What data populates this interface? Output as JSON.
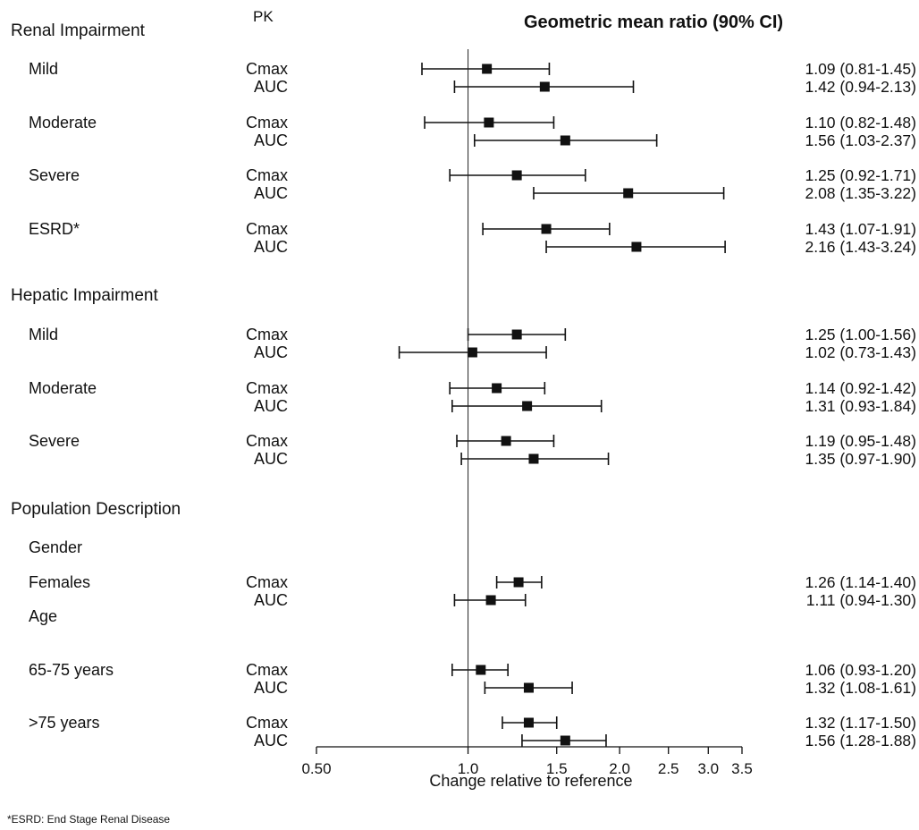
{
  "header": {
    "pk_column": "PK",
    "title": "Geometric mean ratio (90% CI)"
  },
  "axis": {
    "label": "Change relative to reference",
    "scale": "log",
    "range": [
      0.5,
      3.5
    ],
    "ticks": [
      {
        "value": 0.5,
        "label": "0.50"
      },
      {
        "value": 1.0,
        "label": "1.0"
      },
      {
        "value": 1.5,
        "label": "1.5"
      },
      {
        "value": 2.0,
        "label": "2.0"
      },
      {
        "value": 2.5,
        "label": "2.5"
      },
      {
        "value": 3.0,
        "label": "3.0"
      },
      {
        "value": 3.5,
        "label": "3.5"
      }
    ],
    "reference_line": 1.0
  },
  "footnote": "*ESRD: End Stage Renal Disease",
  "chart_data": {
    "type": "forest",
    "sections": [
      {
        "label": "Renal Impairment",
        "groups": [
          {
            "label": "Mild",
            "rows": [
              {
                "pk": "Cmax",
                "gmr": 1.09,
                "lo": 0.81,
                "hi": 1.45,
                "text": "1.09 (0.81-1.45)"
              },
              {
                "pk": "AUC",
                "gmr": 1.42,
                "lo": 0.94,
                "hi": 2.13,
                "text": "1.42 (0.94-2.13)"
              }
            ]
          },
          {
            "label": "Moderate",
            "rows": [
              {
                "pk": "Cmax",
                "gmr": 1.1,
                "lo": 0.82,
                "hi": 1.48,
                "text": "1.10 (0.82-1.48)"
              },
              {
                "pk": "AUC",
                "gmr": 1.56,
                "lo": 1.03,
                "hi": 2.37,
                "text": "1.56 (1.03-2.37)"
              }
            ]
          },
          {
            "label": "Severe",
            "rows": [
              {
                "pk": "Cmax",
                "gmr": 1.25,
                "lo": 0.92,
                "hi": 1.71,
                "text": "1.25 (0.92-1.71)"
              },
              {
                "pk": "AUC",
                "gmr": 2.08,
                "lo": 1.35,
                "hi": 3.22,
                "text": "2.08 (1.35-3.22)"
              }
            ]
          },
          {
            "label": "ESRD*",
            "rows": [
              {
                "pk": "Cmax",
                "gmr": 1.43,
                "lo": 1.07,
                "hi": 1.91,
                "text": "1.43 (1.07-1.91)"
              },
              {
                "pk": "AUC",
                "gmr": 2.16,
                "lo": 1.43,
                "hi": 3.24,
                "text": "2.16 (1.43-3.24)"
              }
            ]
          }
        ]
      },
      {
        "label": "Hepatic Impairment",
        "groups": [
          {
            "label": "Mild",
            "rows": [
              {
                "pk": "Cmax",
                "gmr": 1.25,
                "lo": 1.0,
                "hi": 1.56,
                "text": "1.25 (1.00-1.56)"
              },
              {
                "pk": "AUC",
                "gmr": 1.02,
                "lo": 0.73,
                "hi": 1.43,
                "text": "1.02 (0.73-1.43)"
              }
            ]
          },
          {
            "label": "Moderate",
            "rows": [
              {
                "pk": "Cmax",
                "gmr": 1.14,
                "lo": 0.92,
                "hi": 1.42,
                "text": "1.14 (0.92-1.42)"
              },
              {
                "pk": "AUC",
                "gmr": 1.31,
                "lo": 0.93,
                "hi": 1.84,
                "text": "1.31 (0.93-1.84)"
              }
            ]
          },
          {
            "label": "Severe",
            "rows": [
              {
                "pk": "Cmax",
                "gmr": 1.19,
                "lo": 0.95,
                "hi": 1.48,
                "text": "1.19 (0.95-1.48)"
              },
              {
                "pk": "AUC",
                "gmr": 1.35,
                "lo": 0.97,
                "hi": 1.9,
                "text": "1.35 (0.97-1.90)"
              }
            ]
          }
        ]
      },
      {
        "label": "Population Description",
        "groups": [
          {
            "label": "Gender",
            "rows": []
          },
          {
            "label": "Females",
            "rows": [
              {
                "pk": "Cmax",
                "gmr": 1.26,
                "lo": 1.14,
                "hi": 1.4,
                "text": "1.26 (1.14-1.40)"
              },
              {
                "pk": "AUC",
                "gmr": 1.11,
                "lo": 0.94,
                "hi": 1.3,
                "text": "1.11 (0.94-1.30)"
              }
            ]
          },
          {
            "label": "Age",
            "rows": []
          },
          {
            "label": "65-75 years",
            "rows": [
              {
                "pk": "Cmax",
                "gmr": 1.06,
                "lo": 0.93,
                "hi": 1.2,
                "text": "1.06 (0.93-1.20)"
              },
              {
                "pk": "AUC",
                "gmr": 1.32,
                "lo": 1.08,
                "hi": 1.61,
                "text": "1.32 (1.08-1.61)"
              }
            ]
          },
          {
            "label": ">75 years",
            "rows": [
              {
                "pk": "Cmax",
                "gmr": 1.32,
                "lo": 1.17,
                "hi": 1.5,
                "text": "1.32 (1.17-1.50)"
              },
              {
                "pk": "AUC",
                "gmr": 1.56,
                "lo": 1.28,
                "hi": 1.88,
                "text": "1.56 (1.28-1.88)"
              }
            ]
          }
        ]
      }
    ]
  }
}
